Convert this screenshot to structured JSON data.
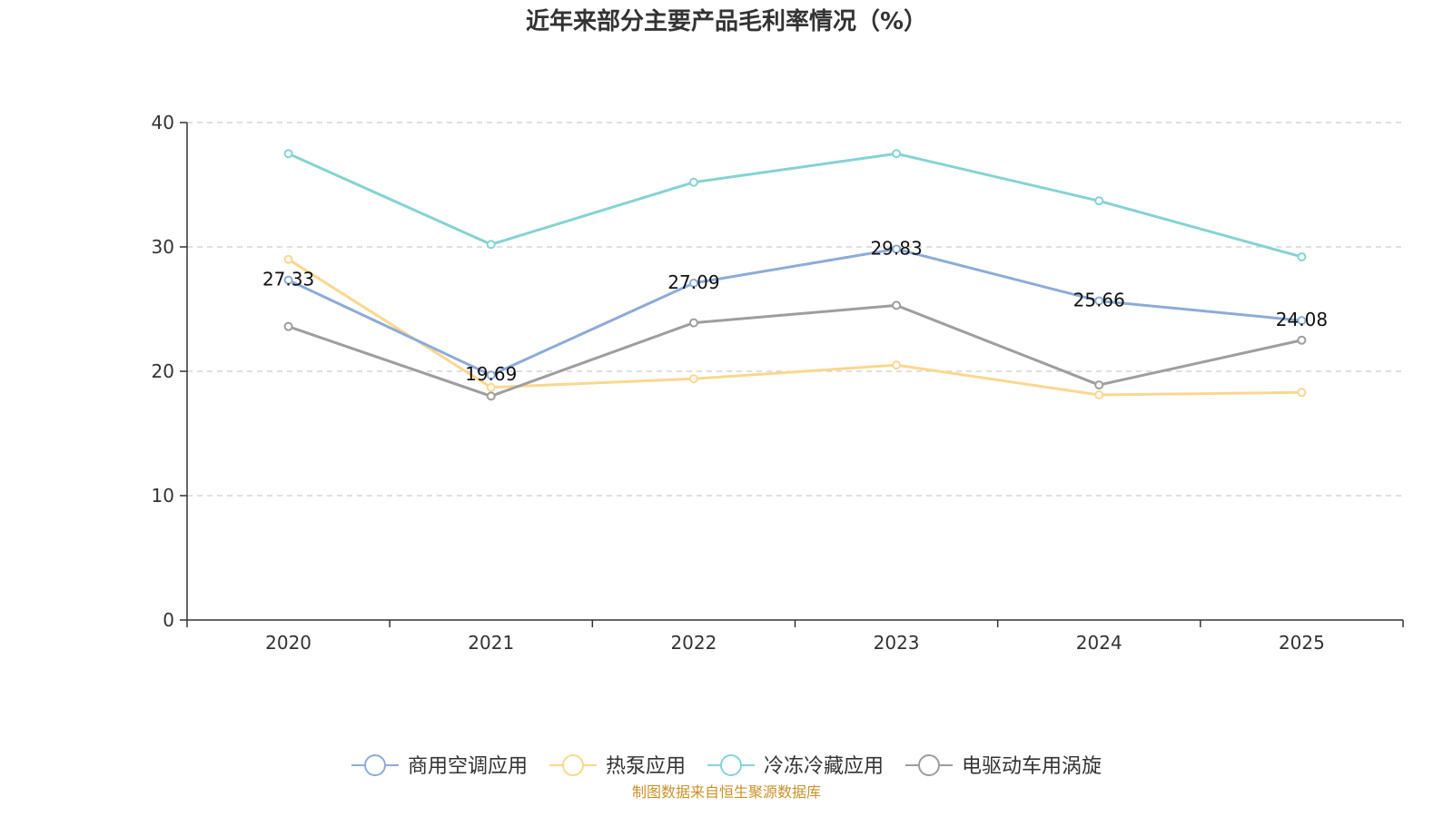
{
  "chart_data": {
    "type": "line",
    "title": "近年来部分主要产品毛利率情况（%）",
    "xlabel": "",
    "ylabel": "",
    "ylim": [
      0,
      40
    ],
    "yticks": [
      "0",
      "10",
      "20",
      "30",
      "40"
    ],
    "categories": [
      "2020",
      "2021",
      "2022",
      "2023",
      "2024",
      "2025"
    ],
    "grid": true,
    "legend_position": "bottom",
    "series": [
      {
        "name": "商用空调应用",
        "color": "#8eabd8",
        "values": [
          27.33,
          19.69,
          27.09,
          29.83,
          25.66,
          24.08
        ],
        "labels": [
          "27.33",
          "19.69",
          "27.09",
          "29.83",
          "25.66",
          "24.08"
        ]
      },
      {
        "name": "热泵应用",
        "color": "#fbd78e",
        "values": [
          29.0,
          18.7,
          19.4,
          20.5,
          18.1,
          18.3
        ]
      },
      {
        "name": "冷冻冷藏应用",
        "color": "#85d3d2",
        "values": [
          37.5,
          30.2,
          35.2,
          37.5,
          33.7,
          29.2
        ]
      },
      {
        "name": "电驱动车用涡旋",
        "color": "#9e9e9e",
        "values": [
          23.6,
          18.0,
          23.9,
          25.3,
          18.9,
          22.5
        ]
      }
    ],
    "source_note": "制图数据来自恒生聚源数据库"
  }
}
